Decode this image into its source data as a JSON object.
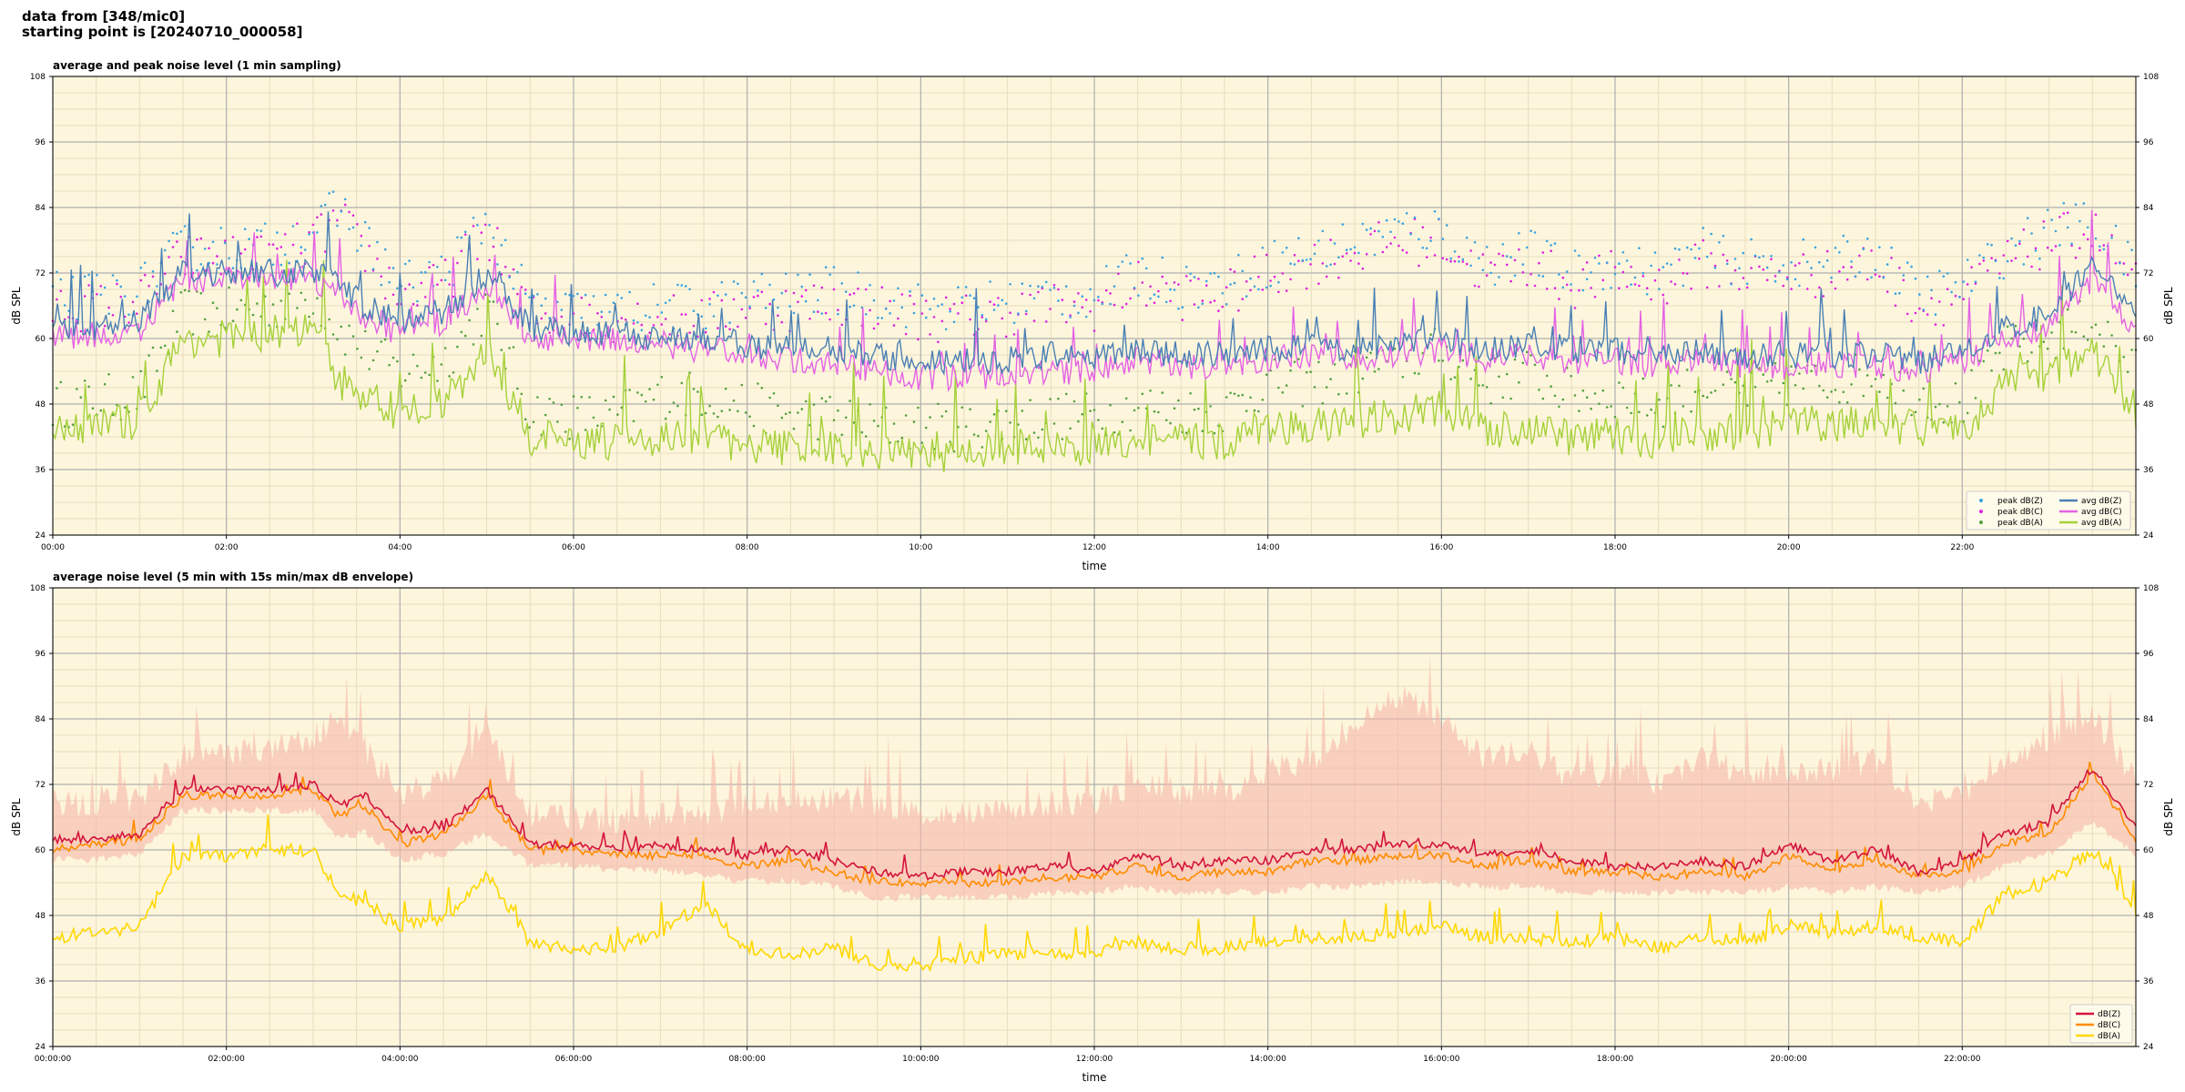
{
  "header": {
    "line1": "data from [348/mic0]",
    "line2": "starting point is [20240710_000058]"
  },
  "colors": {
    "plot_bg": "#fdf6dc",
    "grid_major": "#b0b0b0",
    "grid_minor": "#e8dcc0",
    "peak_z": "#3ba3e0",
    "peak_c": "#e020e0",
    "peak_a": "#55a040",
    "avg_z": "#4a7fb5",
    "avg_c": "#e462e4",
    "avg_a": "#a6d13a",
    "env": "#f6b8a8",
    "db_z": "#d4143c",
    "db_c": "#ff8c00",
    "db_a": "#ffd700"
  },
  "chart_data": [
    {
      "type": "line",
      "title": "average and peak noise level (1 min sampling)",
      "xlabel": "time",
      "ylabel": "dB SPL",
      "xlim": [
        0,
        24
      ],
      "ylim": [
        24,
        108
      ],
      "xticks": [
        "00:00",
        "02:00",
        "04:00",
        "06:00",
        "08:00",
        "10:00",
        "12:00",
        "14:00",
        "16:00",
        "18:00",
        "20:00",
        "22:00"
      ],
      "yticks": [
        24,
        36,
        48,
        60,
        72,
        84,
        96,
        108
      ],
      "grid": true,
      "legend_position": "bottom-right",
      "legend": [
        "peak dB(Z)",
        "avg dB(Z)",
        "peak dB(C)",
        "avg dB(C)",
        "peak dB(A)",
        "avg dB(A)"
      ],
      "x": [
        0,
        0.5,
        1,
        1.5,
        2,
        2.5,
        3,
        3.3,
        3.6,
        4,
        4.5,
        5,
        5.5,
        6,
        6.5,
        7,
        7.5,
        8,
        8.5,
        9,
        9.5,
        10,
        10.5,
        11,
        11.5,
        12,
        12.5,
        13,
        13.5,
        14,
        14.5,
        15,
        15.5,
        16,
        16.5,
        17,
        17.5,
        18,
        18.5,
        19,
        19.5,
        20,
        20.5,
        21,
        21.5,
        22,
        22.5,
        23,
        23.5,
        24
      ],
      "series": [
        {
          "name": "avg dB(Z)",
          "values": [
            62,
            62,
            63,
            72,
            72,
            72,
            72,
            70,
            66,
            63,
            65,
            72,
            62,
            61,
            61,
            60,
            60,
            59,
            58,
            58,
            57,
            56,
            56,
            56,
            57,
            56,
            58,
            57,
            57,
            58,
            59,
            58,
            59,
            60,
            58,
            59,
            58,
            58,
            57,
            58,
            57,
            57,
            57,
            57,
            56,
            58,
            62,
            64,
            73,
            64
          ]
        },
        {
          "name": "avg dB(C)",
          "values": [
            60,
            60,
            61,
            71,
            71,
            71,
            71,
            68,
            64,
            61,
            63,
            70,
            60,
            60,
            60,
            59,
            58,
            57,
            56,
            55,
            54,
            53,
            53,
            53,
            54,
            54,
            56,
            55,
            55,
            56,
            57,
            56,
            57,
            58,
            56,
            57,
            56,
            56,
            55,
            56,
            55,
            55,
            55,
            55,
            54,
            56,
            60,
            62,
            71,
            62
          ]
        },
        {
          "name": "avg dB(A)",
          "values": [
            43,
            44,
            45,
            60,
            60,
            61,
            61,
            52,
            50,
            46,
            48,
            58,
            42,
            41,
            41,
            42,
            42,
            40,
            40,
            40,
            39,
            39,
            39,
            40,
            40,
            40,
            42,
            41,
            41,
            44,
            44,
            44,
            46,
            47,
            43,
            44,
            42,
            42,
            41,
            43,
            42,
            45,
            44,
            45,
            43,
            43,
            52,
            54,
            58,
            47
          ]
        },
        {
          "name": "peak dB(Z)",
          "values": [
            66,
            66,
            67,
            75,
            75,
            75,
            78,
            82,
            76,
            68,
            70,
            80,
            64,
            63,
            63,
            64,
            64,
            66,
            66,
            67,
            66,
            64,
            64,
            65,
            66,
            66,
            70,
            68,
            68,
            72,
            74,
            76,
            78,
            78,
            72,
            74,
            70,
            72,
            70,
            74,
            72,
            72,
            72,
            74,
            66,
            68,
            74,
            78,
            80,
            70
          ]
        },
        {
          "name": "peak dB(C)",
          "values": [
            64,
            64,
            65,
            73,
            73,
            73,
            76,
            80,
            74,
            66,
            68,
            78,
            62,
            62,
            62,
            62,
            62,
            64,
            64,
            65,
            64,
            62,
            62,
            63,
            64,
            64,
            68,
            66,
            66,
            70,
            72,
            74,
            76,
            76,
            70,
            72,
            68,
            70,
            68,
            72,
            70,
            70,
            70,
            72,
            64,
            66,
            72,
            76,
            78,
            68
          ]
        },
        {
          "name": "peak dB(A)",
          "values": [
            46,
            47,
            48,
            63,
            63,
            64,
            66,
            60,
            56,
            52,
            54,
            64,
            45,
            44,
            44,
            48,
            48,
            46,
            44,
            44,
            42,
            42,
            42,
            43,
            44,
            44,
            46,
            45,
            45,
            50,
            50,
            52,
            54,
            56,
            50,
            52,
            48,
            48,
            46,
            50,
            48,
            50,
            50,
            52,
            48,
            46,
            56,
            58,
            62,
            52
          ]
        }
      ]
    },
    {
      "type": "line",
      "title": "average noise level (5 min with 15s min/max dB envelope)",
      "xlabel": "time",
      "ylabel": "dB SPL",
      "xlim": [
        0,
        24
      ],
      "ylim": [
        24,
        108
      ],
      "xticks": [
        "00:00:00",
        "02:00:00",
        "04:00:00",
        "06:00:00",
        "08:00:00",
        "10:00:00",
        "12:00:00",
        "14:00:00",
        "16:00:00",
        "18:00:00",
        "20:00:00",
        "22:00:00"
      ],
      "yticks": [
        24,
        36,
        48,
        60,
        72,
        84,
        96,
        108
      ],
      "grid": true,
      "legend_position": "bottom-right",
      "legend": [
        "dB(Z)",
        "dB(C)",
        "dB(A)"
      ],
      "x": [
        0,
        0.5,
        1,
        1.5,
        2,
        2.5,
        3,
        3.3,
        3.6,
        4,
        4.5,
        5,
        5.5,
        6,
        6.5,
        7,
        7.5,
        8,
        8.5,
        9,
        9.5,
        10,
        10.5,
        11,
        11.5,
        12,
        12.5,
        13,
        13.5,
        14,
        14.5,
        15,
        15.5,
        16,
        16.5,
        17,
        17.5,
        18,
        18.5,
        19,
        19.5,
        20,
        20.5,
        21,
        21.5,
        22,
        22.5,
        23,
        23.5,
        24
      ],
      "series": [
        {
          "name": "dB(Z)",
          "values": [
            62,
            62,
            63,
            71,
            71,
            71,
            72,
            68,
            70,
            63,
            64,
            71,
            61,
            61,
            60,
            61,
            60,
            59,
            60,
            58,
            56,
            55,
            56,
            56,
            57,
            56,
            59,
            57,
            58,
            58,
            60,
            60,
            61,
            61,
            59,
            60,
            58,
            57,
            57,
            58,
            57,
            61,
            58,
            60,
            56,
            58,
            63,
            65,
            75,
            64
          ]
        },
        {
          "name": "dB(C)",
          "values": [
            60,
            61,
            62,
            70,
            70,
            70,
            71,
            66,
            68,
            61,
            63,
            70,
            60,
            60,
            59,
            59,
            59,
            57,
            58,
            56,
            54,
            54,
            54,
            54,
            55,
            55,
            57,
            55,
            56,
            56,
            58,
            58,
            59,
            59,
            57,
            58,
            56,
            56,
            55,
            56,
            55,
            59,
            56,
            58,
            55,
            56,
            61,
            63,
            74,
            62
          ]
        },
        {
          "name": "dB(A)",
          "values": [
            44,
            45,
            46,
            59,
            59,
            60,
            60,
            52,
            50,
            46,
            47,
            56,
            43,
            42,
            42,
            45,
            50,
            42,
            41,
            42,
            39,
            39,
            40,
            41,
            41,
            41,
            43,
            42,
            42,
            43,
            44,
            44,
            45,
            46,
            44,
            44,
            43,
            44,
            42,
            44,
            43,
            46,
            45,
            46,
            44,
            43,
            52,
            54,
            60,
            49
          ]
        },
        {
          "name": "envelope max",
          "values": [
            66,
            66,
            67,
            75,
            75,
            76,
            78,
            82,
            76,
            68,
            70,
            80,
            64,
            63,
            63,
            64,
            64,
            66,
            66,
            67,
            66,
            64,
            64,
            65,
            66,
            66,
            70,
            68,
            68,
            72,
            74,
            80,
            86,
            82,
            74,
            76,
            70,
            72,
            70,
            74,
            72,
            72,
            72,
            74,
            66,
            68,
            74,
            78,
            82,
            70
          ]
        },
        {
          "name": "envelope min",
          "values": [
            59,
            59,
            60,
            68,
            68,
            68,
            68,
            63,
            64,
            59,
            60,
            64,
            58,
            58,
            57,
            57,
            56,
            55,
            55,
            54,
            52,
            52,
            52,
            52,
            53,
            53,
            54,
            53,
            53,
            53,
            54,
            54,
            55,
            55,
            54,
            54,
            53,
            53,
            53,
            53,
            53,
            54,
            53,
            54,
            53,
            54,
            58,
            60,
            66,
            60
          ]
        }
      ]
    }
  ]
}
